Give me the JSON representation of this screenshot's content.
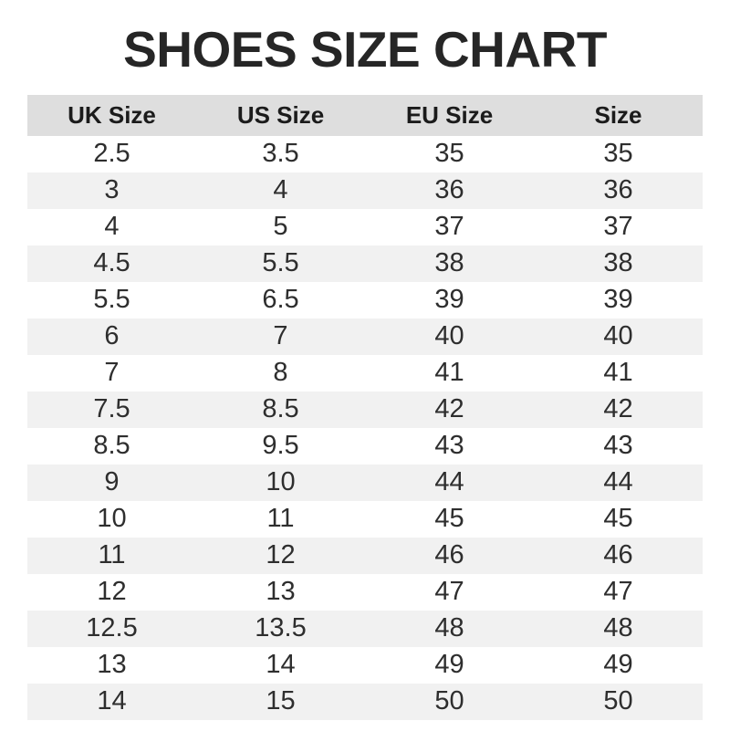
{
  "title": "SHOES SIZE CHART",
  "chart_data": {
    "type": "table",
    "title": "SHOES SIZE CHART",
    "columns": [
      "UK Size",
      "US Size",
      "EU Size",
      "Size"
    ],
    "rows": [
      [
        "2.5",
        "3.5",
        "35",
        "35"
      ],
      [
        "3",
        "4",
        "36",
        "36"
      ],
      [
        "4",
        "5",
        "37",
        "37"
      ],
      [
        "4.5",
        "5.5",
        "38",
        "38"
      ],
      [
        "5.5",
        "6.5",
        "39",
        "39"
      ],
      [
        "6",
        "7",
        "40",
        "40"
      ],
      [
        "7",
        "8",
        "41",
        "41"
      ],
      [
        "7.5",
        "8.5",
        "42",
        "42"
      ],
      [
        "8.5",
        "9.5",
        "43",
        "43"
      ],
      [
        "9",
        "10",
        "44",
        "44"
      ],
      [
        "10",
        "11",
        "45",
        "45"
      ],
      [
        "11",
        "12",
        "46",
        "46"
      ],
      [
        "12",
        "13",
        "47",
        "47"
      ],
      [
        "12.5",
        "13.5",
        "48",
        "48"
      ],
      [
        "13",
        "14",
        "49",
        "49"
      ],
      [
        "14",
        "15",
        "50",
        "50"
      ]
    ],
    "layout": {
      "striped": true,
      "first_row_striped": false,
      "legend": "none",
      "grid": "off"
    }
  },
  "colors": {
    "page_bg": "#ffffff",
    "title_color": "#262626",
    "header_bg": "#dedede",
    "stripe_bg": "#f1f1f1",
    "cell_text": "#2e2e2e"
  }
}
